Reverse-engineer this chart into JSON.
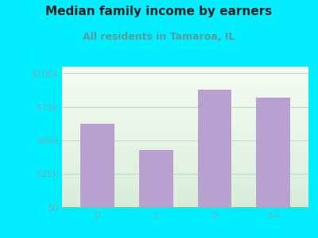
{
  "title": "Median family income by earners",
  "subtitle": "All residents in Tamaroa, IL",
  "categories": [
    "0",
    "1",
    "2",
    "3+"
  ],
  "values": [
    62000,
    43000,
    88000,
    82000
  ],
  "bar_color": "#b8a0d0",
  "background_outer": "#00eeff",
  "yticks": [
    0,
    25000,
    50000,
    75000,
    100000
  ],
  "ytick_labels": [
    "$0",
    "$25k",
    "$50k",
    "$75k",
    "$100k"
  ],
  "ylim": [
    0,
    105000
  ],
  "title_fontsize": 11,
  "subtitle_fontsize": 9,
  "tick_color": "#7aadad",
  "grid_color": "#c0d8c0",
  "title_color": "#222222",
  "subtitle_color": "#5a9a9a"
}
